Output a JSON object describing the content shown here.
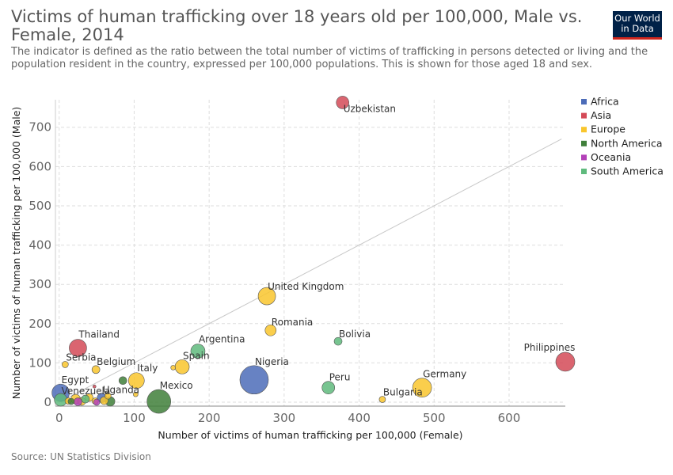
{
  "header": {
    "title": "Victims of human trafficking over 18 years old per 100,000, Male vs. Female, 2014",
    "subtitle": "The indicator is defined as the ratio between the total number of victims of trafficking in persons detected or living and the population resident in the country, expressed per 100,000 populations. This is shown for those aged 18 and sex.",
    "logo_line1": "Our World",
    "logo_line2": "in Data"
  },
  "footer": {
    "source": "Source: UN Statistics Division"
  },
  "colors": {
    "Africa": "#4c6cb8",
    "Asia": "#d44a57",
    "Europe": "#f9c62d",
    "North America": "#3f7f3a",
    "Oceania": "#b341b8",
    "South America": "#5fba7d"
  },
  "chart_data": {
    "type": "scatter",
    "title": "Victims of human trafficking over 18 years old per 100,000, Male vs. Female, 2014",
    "xlabel": "Number of victims of human trafficking per 100,000 (Female)",
    "ylabel": "Number of victims of human trafficking per 100,000 (Male)",
    "xlim": [
      -5,
      675
    ],
    "ylim": [
      -10,
      770
    ],
    "xticks": [
      0,
      100,
      200,
      300,
      400,
      500,
      600
    ],
    "yticks": [
      0,
      100,
      200,
      300,
      400,
      500,
      600,
      700
    ],
    "grid": true,
    "legend_position": "right",
    "legend": [
      "Africa",
      "Asia",
      "Europe",
      "North America",
      "Oceania",
      "South America"
    ],
    "reference_line": [
      [
        0,
        0
      ],
      [
        670,
        670
      ]
    ],
    "points": [
      {
        "label": "Uzbekistan",
        "x": 378,
        "y": 763,
        "region": "Asia",
        "r": 8
      },
      {
        "label": "United Kingdom",
        "x": 277,
        "y": 270,
        "region": "Europe",
        "r": 11
      },
      {
        "label": "Romania",
        "x": 282,
        "y": 183,
        "region": "Europe",
        "r": 7
      },
      {
        "label": "Bolivia",
        "x": 372,
        "y": 155,
        "region": "South America",
        "r": 5
      },
      {
        "label": "Philippines",
        "x": 676,
        "y": 103,
        "region": "Asia",
        "r": 12
      },
      {
        "label": "Thailand",
        "x": 25,
        "y": 138,
        "region": "Asia",
        "r": 11
      },
      {
        "label": "Argentina",
        "x": 185,
        "y": 130,
        "region": "South America",
        "r": 9
      },
      {
        "label": "Serbia",
        "x": 8,
        "y": 96,
        "region": "Europe",
        "r": 4
      },
      {
        "label": "Belgium",
        "x": 49,
        "y": 83,
        "region": "Europe",
        "r": 5
      },
      {
        "label": "Spain",
        "x": 164,
        "y": 90,
        "region": "Europe",
        "r": 9
      },
      {
        "label": "Italy",
        "x": 103,
        "y": 55,
        "region": "Europe",
        "r": 10
      },
      {
        "label": "Nigeria",
        "x": 260,
        "y": 57,
        "region": "Africa",
        "r": 18
      },
      {
        "label": "Peru",
        "x": 359,
        "y": 37,
        "region": "South America",
        "r": 8
      },
      {
        "label": "Germany",
        "x": 484,
        "y": 37,
        "region": "Europe",
        "r": 12
      },
      {
        "label": "Bulgaria",
        "x": 431,
        "y": 7,
        "region": "Europe",
        "r": 4
      },
      {
        "label": "Mexico",
        "x": 133,
        "y": 2,
        "region": "North America",
        "r": 15
      },
      {
        "label": "Egypt",
        "x": 2,
        "y": 24,
        "region": "Africa",
        "r": 11
      },
      {
        "label": "Venezuela",
        "x": 2,
        "y": 6,
        "region": "South America",
        "r": 8
      },
      {
        "label": "Uganda",
        "x": 57,
        "y": 11,
        "region": "Africa",
        "r": 6
      },
      {
        "label": "",
        "x": 68,
        "y": 2,
        "region": "North America",
        "r": 6
      },
      {
        "label": "",
        "x": 85,
        "y": 55,
        "region": "North America",
        "r": 5
      },
      {
        "label": "",
        "x": 22,
        "y": 8,
        "region": "Europe",
        "r": 6
      },
      {
        "label": "",
        "x": 30,
        "y": 2,
        "region": "Europe",
        "r": 5
      },
      {
        "label": "",
        "x": 40,
        "y": 12,
        "region": "Europe",
        "r": 5
      },
      {
        "label": "",
        "x": 12,
        "y": 3,
        "region": "Europe",
        "r": 4
      },
      {
        "label": "",
        "x": 48,
        "y": 3,
        "region": "Europe",
        "r": 4
      },
      {
        "label": "",
        "x": 60,
        "y": 4,
        "region": "Europe",
        "r": 5
      },
      {
        "label": "",
        "x": 65,
        "y": 16,
        "region": "Europe",
        "r": 4
      },
      {
        "label": "",
        "x": 102,
        "y": 20,
        "region": "Europe",
        "r": 3
      },
      {
        "label": "",
        "x": 152,
        "y": 88,
        "region": "Europe",
        "r": 3
      },
      {
        "label": "",
        "x": 25,
        "y": 1,
        "region": "Oceania",
        "r": 5
      },
      {
        "label": "",
        "x": 50,
        "y": 0,
        "region": "Oceania",
        "r": 4
      },
      {
        "label": "",
        "x": 47,
        "y": 40,
        "region": "Asia",
        "r": 2
      },
      {
        "label": "",
        "x": 35,
        "y": 8,
        "region": "South America",
        "r": 5
      },
      {
        "label": "",
        "x": 16,
        "y": 2,
        "region": "North America",
        "r": 4
      }
    ]
  }
}
